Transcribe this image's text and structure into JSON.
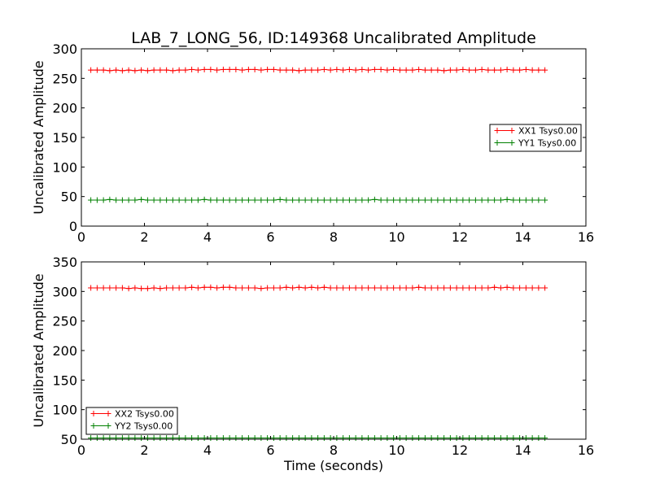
{
  "title": "LAB_7_LONG_56, ID:149368 Uncalibrated Amplitude",
  "xlabel": "Time (seconds)",
  "colors": {
    "xx": "#ff0000",
    "yy": "#008000",
    "frame": "#000000",
    "background": "#ffffff"
  },
  "chart_data": [
    {
      "type": "line",
      "ylabel": "Uncalibrated Amplitude",
      "xlim": [
        0,
        16
      ],
      "ylim": [
        0,
        300
      ],
      "xticks": [
        0,
        2,
        4,
        6,
        8,
        10,
        12,
        14,
        16
      ],
      "yticks": [
        0,
        50,
        100,
        150,
        200,
        250,
        300
      ],
      "legend_position": "center-right",
      "series": [
        {
          "name": "XX1 Tsys0.00",
          "color": "#ff0000",
          "x_start": 0.3,
          "x_step": 0.2,
          "count": 73,
          "values": [
            264,
            264,
            264,
            263,
            264,
            263,
            264,
            263,
            264,
            263,
            264,
            264,
            264,
            263,
            264,
            264,
            265,
            264,
            265,
            265,
            264,
            265,
            265,
            265,
            264,
            265,
            265,
            264,
            265,
            265,
            264,
            264,
            264,
            263,
            264,
            264,
            264,
            265,
            264,
            265,
            264,
            265,
            264,
            265,
            264,
            265,
            265,
            264,
            265,
            264,
            264,
            264,
            265,
            264,
            264,
            264,
            263,
            264,
            264,
            265,
            264,
            264,
            265,
            264,
            264,
            264,
            265,
            264,
            264,
            265,
            264,
            264,
            264
          ]
        },
        {
          "name": "YY1 Tsys0.00",
          "color": "#008000",
          "x_start": 0.3,
          "x_step": 0.2,
          "count": 73,
          "values": [
            44,
            44,
            44,
            45,
            44,
            44,
            44,
            44,
            45,
            44,
            44,
            44,
            44,
            44,
            44,
            44,
            44,
            44,
            45,
            44,
            44,
            44,
            44,
            44,
            44,
            44,
            44,
            44,
            44,
            44,
            45,
            44,
            44,
            44,
            44,
            44,
            44,
            44,
            44,
            44,
            44,
            44,
            44,
            44,
            44,
            45,
            44,
            44,
            44,
            44,
            44,
            44,
            44,
            44,
            44,
            44,
            44,
            44,
            44,
            44,
            44,
            44,
            44,
            44,
            44,
            44,
            45,
            44,
            44,
            44,
            44,
            44,
            44
          ]
        }
      ]
    },
    {
      "type": "line",
      "ylabel": "Uncalibrated Amplitude",
      "xlabel": "Time (seconds)",
      "xlim": [
        0,
        16
      ],
      "ylim": [
        50,
        350
      ],
      "xticks": [
        0,
        2,
        4,
        6,
        8,
        10,
        12,
        14,
        16
      ],
      "yticks": [
        50,
        100,
        150,
        200,
        250,
        300,
        350
      ],
      "legend_position": "lower-left",
      "series": [
        {
          "name": "XX2 Tsys0.00",
          "color": "#ff0000",
          "x_start": 0.3,
          "x_step": 0.2,
          "count": 73,
          "values": [
            306,
            306,
            306,
            306,
            306,
            306,
            305,
            306,
            305,
            305,
            306,
            305,
            306,
            306,
            306,
            306,
            307,
            306,
            307,
            307,
            306,
            307,
            307,
            306,
            306,
            306,
            306,
            305,
            306,
            306,
            306,
            307,
            306,
            307,
            306,
            307,
            306,
            307,
            306,
            306,
            306,
            306,
            306,
            306,
            306,
            306,
            306,
            306,
            306,
            306,
            306,
            306,
            307,
            306,
            306,
            306,
            306,
            306,
            306,
            306,
            306,
            306,
            306,
            306,
            307,
            306,
            307,
            306,
            306,
            306,
            306,
            306,
            306
          ]
        },
        {
          "name": "YY2 Tsys0.00",
          "color": "#008000",
          "x_start": 0.3,
          "x_step": 0.2,
          "count": 73,
          "values": [
            52,
            52,
            52,
            52,
            52,
            52,
            52,
            52,
            52,
            52,
            52,
            52,
            52,
            52,
            52,
            52,
            52,
            52,
            52,
            52,
            52,
            52,
            52,
            52,
            52,
            52,
            52,
            52,
            52,
            52,
            52,
            52,
            52,
            52,
            52,
            52,
            52,
            52,
            52,
            52,
            52,
            52,
            52,
            52,
            52,
            52,
            52,
            52,
            52,
            52,
            52,
            52,
            52,
            52,
            52,
            52,
            52,
            52,
            52,
            52,
            52,
            52,
            52,
            52,
            52,
            52,
            52,
            52,
            52,
            52,
            52,
            52,
            52
          ]
        }
      ]
    }
  ]
}
